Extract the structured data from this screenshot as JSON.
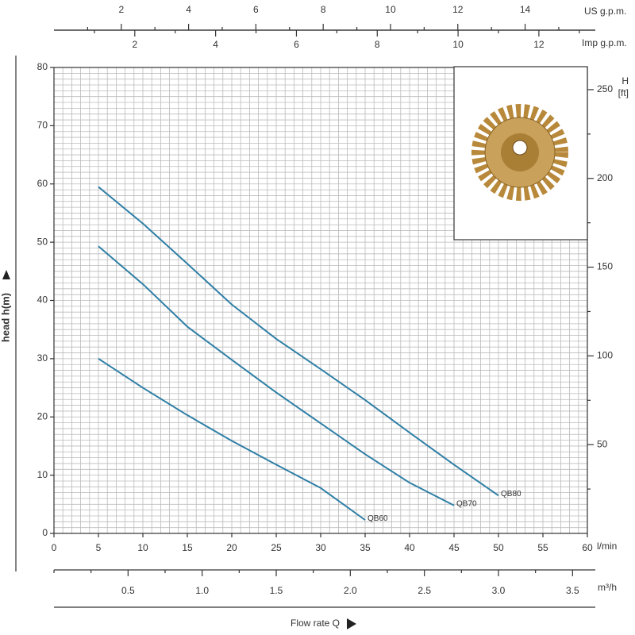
{
  "chart_data": {
    "type": "line",
    "x_unit": "l/min",
    "x_title": "Flow rate Q",
    "y_title": "head h(m)",
    "x": [
      5,
      10,
      15,
      20,
      25,
      30,
      35,
      40,
      45,
      50
    ],
    "series": [
      {
        "name": "QB60",
        "color": "#2f7fa6",
        "values": [
          30,
          25,
          20.3,
          15.9,
          11.8,
          7.8,
          2.3,
          null,
          null,
          null
        ]
      },
      {
        "name": "QB70",
        "color": "#2f7fa6",
        "values": [
          49.3,
          42.8,
          35.5,
          29.8,
          24.2,
          18.9,
          13.6,
          8.7,
          4.8,
          null
        ]
      },
      {
        "name": "QB80",
        "color": "#2f7fa6",
        "values": [
          59.5,
          53.2,
          46.3,
          39.3,
          33.4,
          28.2,
          22.9,
          17.3,
          11.8,
          6.5
        ]
      }
    ],
    "xlim": [
      0,
      60
    ],
    "xticks": [
      0,
      5,
      10,
      15,
      20,
      25,
      30,
      35,
      40,
      45,
      50,
      55,
      60
    ],
    "ylim": [
      0,
      80
    ],
    "yticks": [
      0,
      10,
      20,
      30,
      40,
      50,
      60,
      70,
      80
    ],
    "grid": true,
    "minor_grid": {
      "x": 1,
      "y": 1
    },
    "us_gpm_axis": {
      "label": "US g.p.m.",
      "lim": [
        0,
        15.85
      ],
      "ticks": [
        2,
        4,
        6,
        8,
        10,
        12,
        14
      ],
      "minor_ticks": [
        1,
        3,
        5,
        7,
        9,
        11,
        13,
        15
      ]
    },
    "imp_gpm_axis": {
      "label": "Imp g.p.m.",
      "lim": [
        0,
        13.2
      ],
      "ticks": [
        2,
        4,
        6,
        8,
        10,
        12
      ],
      "minor_ticks": [
        1,
        3,
        5,
        7,
        9,
        11,
        13
      ]
    },
    "m3h_axis": {
      "label": "m³/h",
      "lim": [
        0,
        3.6
      ],
      "ticks": [
        0.5,
        {
          "value": 1,
          "label": "1.0"
        },
        1.5,
        {
          "value": 2,
          "label": "2.0"
        },
        2.5,
        {
          "value": 3,
          "label": "3.0"
        },
        3.5
      ],
      "minor_ticks": [
        0,
        0.25,
        0.75,
        1.25,
        1.75,
        2.25,
        2.75,
        3.25
      ]
    },
    "ft_axis": {
      "label": [
        "H",
        "[ft]"
      ],
      "lim": [
        0,
        262.5
      ],
      "ticks": [
        50,
        100,
        150,
        200,
        250
      ],
      "minor_ticks": [
        25,
        75,
        125,
        175,
        225
      ]
    }
  }
}
